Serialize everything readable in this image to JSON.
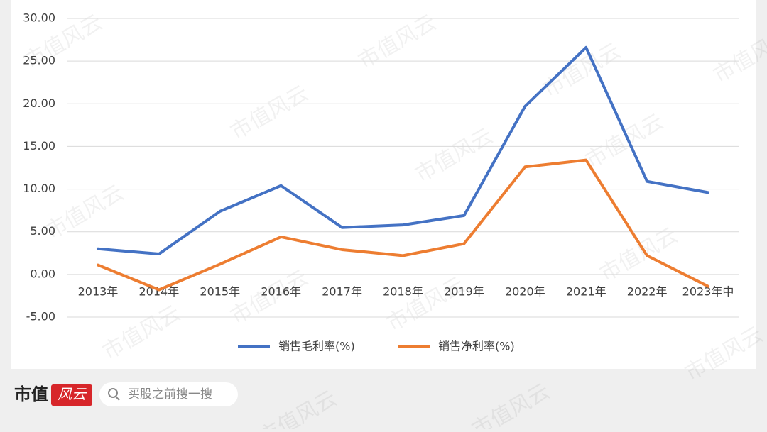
{
  "chart_data": {
    "type": "line",
    "categories": [
      "2013年",
      "2014年",
      "2015年",
      "2016年",
      "2017年",
      "2018年",
      "2019年",
      "2020年",
      "2021年",
      "2022年",
      "2023年中"
    ],
    "series": [
      {
        "name": "销售毛利率(%)",
        "color": "#4472c4",
        "values": [
          3.0,
          2.4,
          7.4,
          10.4,
          5.5,
          5.8,
          6.9,
          19.7,
          26.6,
          10.9,
          9.6
        ]
      },
      {
        "name": "销售净利率(%)",
        "color": "#ed7d31",
        "values": [
          1.1,
          -1.8,
          1.2,
          4.4,
          2.9,
          2.2,
          3.6,
          12.6,
          13.4,
          2.2,
          -1.4
        ]
      }
    ],
    "ylim": [
      -5,
      30
    ],
    "yticks": [
      {
        "value": -5,
        "label": "-5.00"
      },
      {
        "value": 0,
        "label": "0.00"
      },
      {
        "value": 5,
        "label": "5.00"
      },
      {
        "value": 10,
        "label": "10.00"
      },
      {
        "value": 15,
        "label": "15.00"
      },
      {
        "value": 20,
        "label": "20.00"
      },
      {
        "value": 25,
        "label": "25.00"
      },
      {
        "value": 30,
        "label": "30.00"
      }
    ],
    "grid": true,
    "legend": "bottom"
  },
  "footer": {
    "brand": "市值",
    "brand_mark": "风云",
    "search": "买股之前搜一搜"
  },
  "watermark": "市值风云"
}
